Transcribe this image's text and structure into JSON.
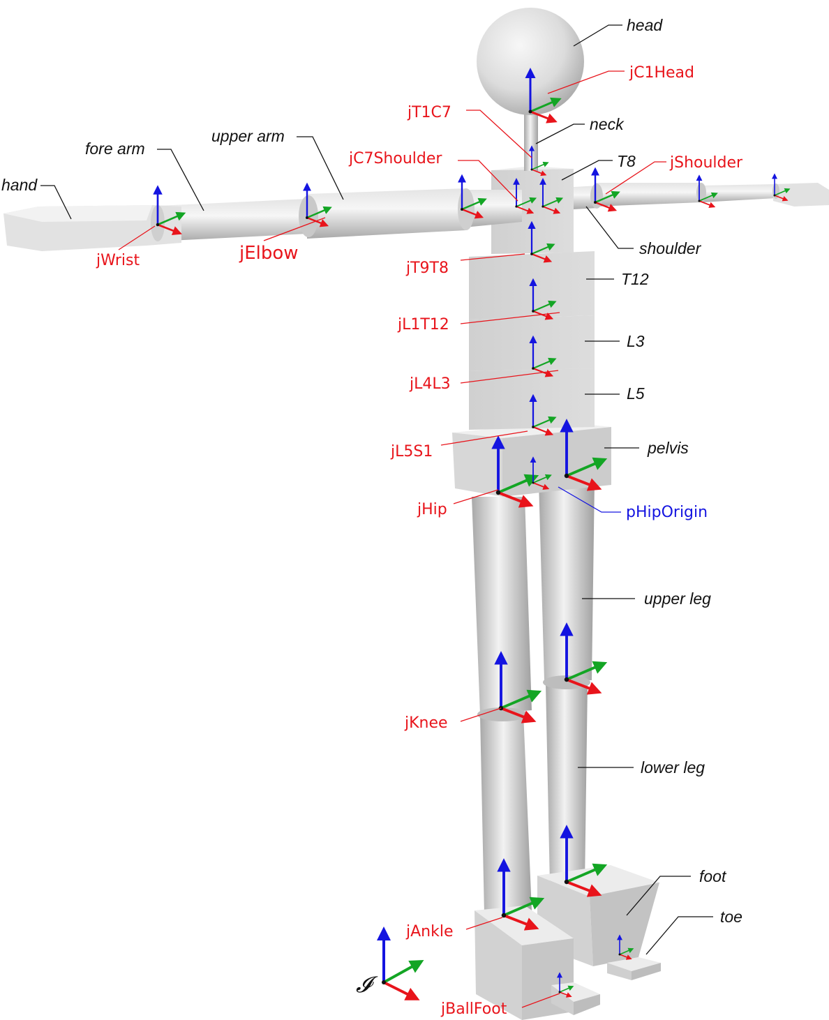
{
  "colors": {
    "joint": "#e8141b",
    "point": "#1414e0",
    "segment_text": "#111111",
    "leader_black": "#111111",
    "axis_x": "#e8141b",
    "axis_y": "#13a524",
    "axis_z": "#1414e0",
    "body_fill": "#d9d9d9",
    "body_light": "#eeeeee",
    "body_dark": "#a9a9a9"
  },
  "segments": {
    "head": "head",
    "neck": "neck",
    "t8": "T8",
    "shoulder": "shoulder",
    "upper_arm": "upper arm",
    "fore_arm": "fore arm",
    "hand": "hand",
    "t12": "T12",
    "l3": "L3",
    "l5": "L5",
    "pelvis": "pelvis",
    "upper_leg": "upper leg",
    "lower_leg": "lower leg",
    "foot": "foot",
    "toe": "toe"
  },
  "joints": {
    "jc1head": "jC1Head",
    "jt1c7": "jT1C7",
    "jc7shoulder": "jC7Shoulder",
    "jshoulder": "jShoulder",
    "jwrist": "jWrist",
    "jelbow": "jElbow",
    "jt9t8": "jT9T8",
    "jl1t12": "jL1T12",
    "jl4l3": "jL4L3",
    "jl5s1": "jL5S1",
    "jhip": "jHip",
    "jknee": "jKnee",
    "jankle": "jAnkle",
    "jballfoot": "jBallFoot"
  },
  "points": {
    "phiporigin": "pHipOrigin"
  },
  "frame_symbol": "𝓘"
}
